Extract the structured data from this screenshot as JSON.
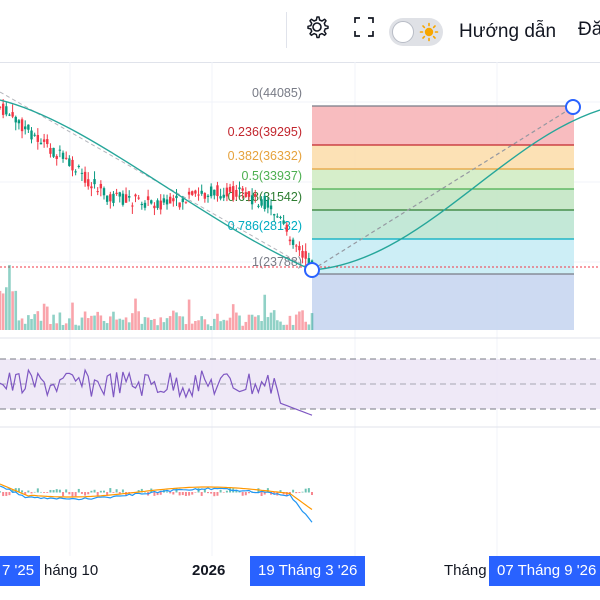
{
  "toolbar": {
    "settings_icon": "gear-icon",
    "fullscreen_icon": "fullscreen-icon",
    "theme_toggle_icon": "sun-icon",
    "guide_label": "Hướng dẫn",
    "cut_label": "Đă"
  },
  "fib": {
    "levels": [
      {
        "label": "0(44085)",
        "color": "#787b86"
      },
      {
        "label": "0.236(39295)",
        "color": "#c2262e"
      },
      {
        "label": "0.382(36332)",
        "color": "#e6a23c"
      },
      {
        "label": "0.5(33937)",
        "color": "#4caf50"
      },
      {
        "label": "0.618(31542)",
        "color": "#2e7d32"
      },
      {
        "label": "0.786(28132)",
        "color": "#00acc1"
      },
      {
        "label": "1(23788)",
        "color": "#787b86"
      }
    ]
  },
  "xaxis": {
    "left_edge": "7 '25",
    "label_1": "háng 10",
    "label_2": "2026",
    "highlight_1": "19 Tháng 3 '26",
    "label_3": "Tháng",
    "highlight_2": "07 Tháng 9 '26"
  },
  "colors": {
    "up": "#089981",
    "down": "#f23645",
    "accent": "#2962ff"
  }
}
